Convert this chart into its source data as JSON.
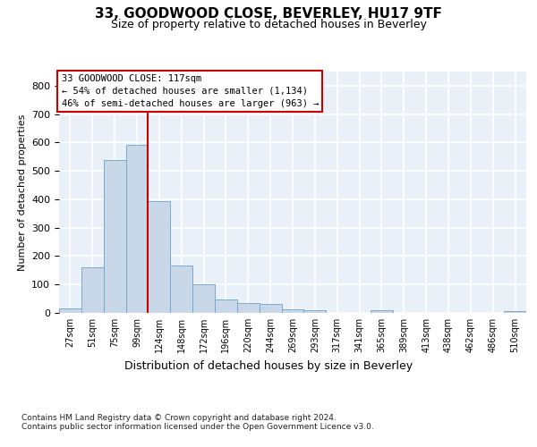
{
  "title": "33, GOODWOOD CLOSE, BEVERLEY, HU17 9TF",
  "subtitle": "Size of property relative to detached houses in Beverley",
  "xlabel": "Distribution of detached houses by size in Beverley",
  "ylabel": "Number of detached properties",
  "bar_labels": [
    "27sqm",
    "51sqm",
    "75sqm",
    "99sqm",
    "124sqm",
    "148sqm",
    "172sqm",
    "196sqm",
    "220sqm",
    "244sqm",
    "269sqm",
    "293sqm",
    "317sqm",
    "341sqm",
    "365sqm",
    "389sqm",
    "413sqm",
    "438sqm",
    "462sqm",
    "486sqm",
    "510sqm"
  ],
  "bar_values": [
    16,
    161,
    538,
    592,
    393,
    166,
    102,
    48,
    35,
    30,
    13,
    11,
    0,
    0,
    8,
    0,
    0,
    0,
    0,
    0,
    7
  ],
  "bar_color": "#c8d8e8",
  "bar_edge_color": "#7aaace",
  "vline_x": 3.5,
  "vline_color": "#cc0000",
  "annotation_text": "33 GOODWOOD CLOSE: 117sqm\n← 54% of detached houses are smaller (1,134)\n46% of semi-detached houses are larger (963) →",
  "annotation_box_color": "#ffffff",
  "annotation_box_edge": "#cc0000",
  "ylim": [
    0,
    850
  ],
  "yticks": [
    0,
    100,
    200,
    300,
    400,
    500,
    600,
    700,
    800
  ],
  "bg_color": "#eaf0f8",
  "grid_color": "#ffffff",
  "footer": "Contains HM Land Registry data © Crown copyright and database right 2024.\nContains public sector information licensed under the Open Government Licence v3.0.",
  "title_fontsize": 11,
  "subtitle_fontsize": 9
}
